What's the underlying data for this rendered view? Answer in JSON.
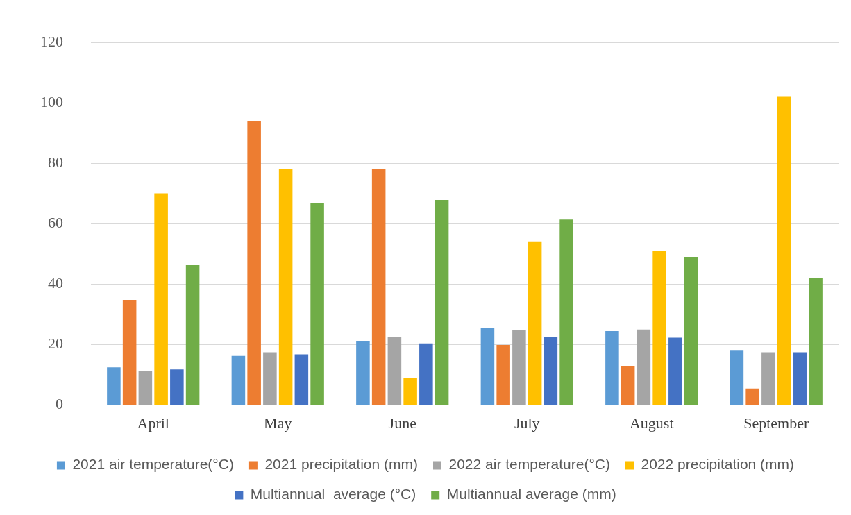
{
  "chart_data": {
    "type": "bar",
    "categories": [
      "April",
      "May",
      "June",
      "July",
      "August",
      "September"
    ],
    "series": [
      {
        "name": "2021 air temperature(°C)",
        "color": "#5b9bd5",
        "values": [
          12.5,
          16.3,
          21.1,
          25.4,
          24.5,
          18.2
        ]
      },
      {
        "name": "2021 precipitation (mm)",
        "color": "#ed7d31",
        "values": [
          34.8,
          94.1,
          78,
          19.9,
          13,
          5.5
        ]
      },
      {
        "name": "2022 air temperature(°C)",
        "color": "#a5a5a5",
        "values": [
          11.3,
          17.5,
          22.6,
          24.7,
          25,
          17.5
        ]
      },
      {
        "name": "2022 precipitation (mm)",
        "color": "#ffc000",
        "values": [
          70.1,
          78,
          8.9,
          54.2,
          51.1,
          102
        ]
      },
      {
        "name": "Multiannual  average (°C)",
        "color": "#4472c4",
        "values": [
          11.8,
          16.8,
          20.4,
          22.6,
          22.3,
          17.5
        ]
      },
      {
        "name": "Multiannual average (mm)",
        "color": "#70ad47",
        "values": [
          46.3,
          67,
          67.9,
          61.4,
          49,
          42.2
        ]
      }
    ],
    "ylim": [
      0,
      120
    ],
    "yticks": [
      0,
      20,
      40,
      60,
      80,
      100,
      120
    ],
    "grid": "y",
    "legend": "bottom"
  }
}
